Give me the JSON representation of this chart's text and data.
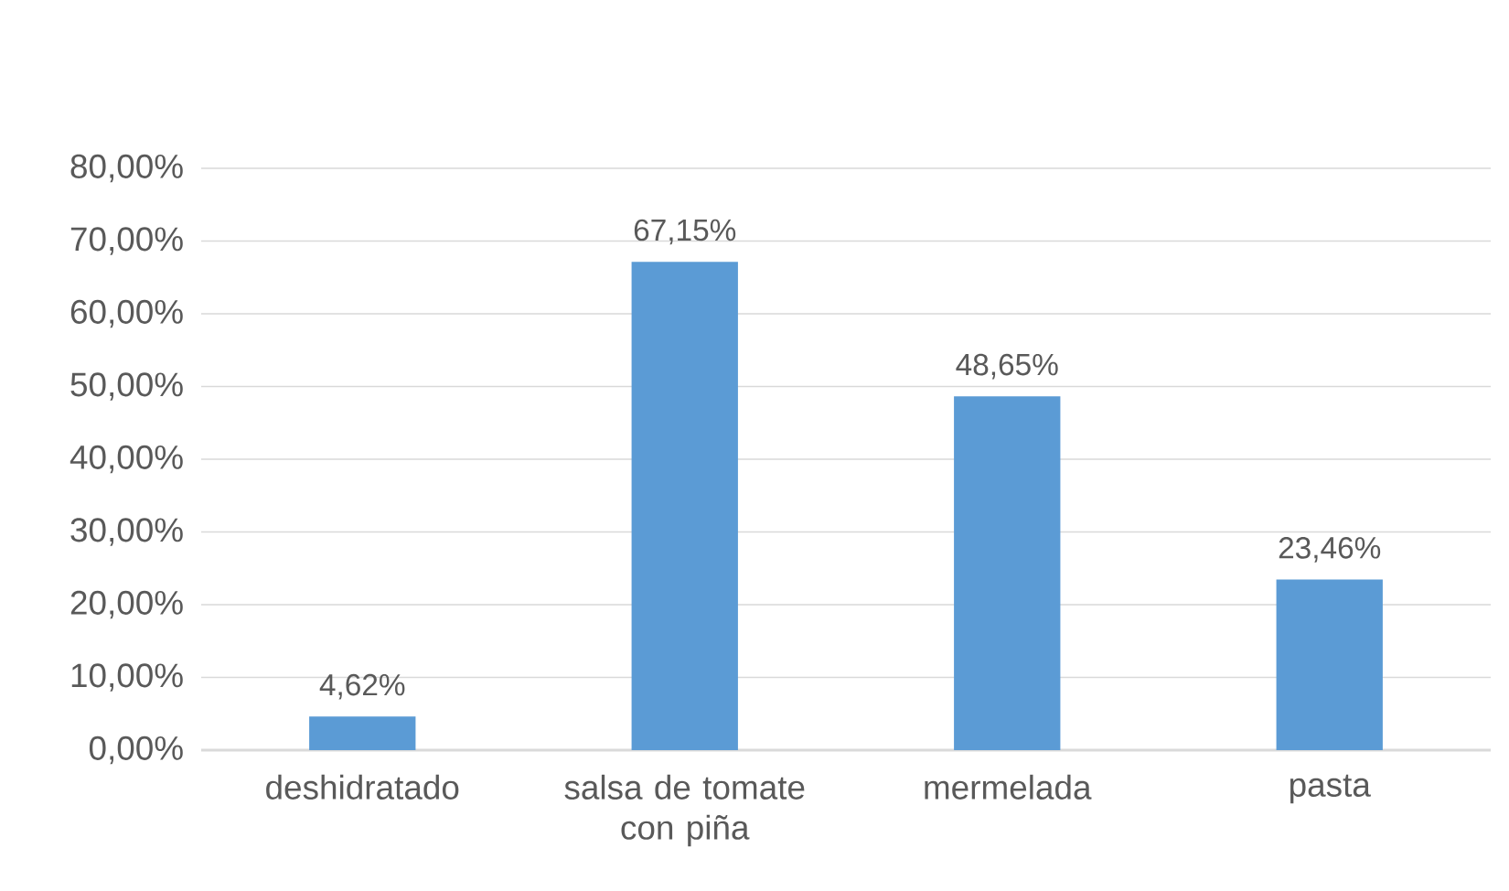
{
  "chart_data": {
    "type": "bar",
    "categories": [
      "deshidratado",
      "salsa de tomate con piña",
      "mermelada",
      "pasta"
    ],
    "values": [
      4.62,
      67.15,
      48.65,
      23.46
    ],
    "value_labels": [
      "4,62%",
      "67,15%",
      "48,65%",
      "23,46%"
    ],
    "color": "#5b9bd5",
    "ylim": [
      0,
      80
    ],
    "yticks": [
      {
        "value": 0,
        "label": "0,00%"
      },
      {
        "value": 10,
        "label": "10,00%"
      },
      {
        "value": 20,
        "label": "20,00%"
      },
      {
        "value": 30,
        "label": "30,00%"
      },
      {
        "value": 40,
        "label": "40,00%"
      },
      {
        "value": 50,
        "label": "50,00%"
      },
      {
        "value": 60,
        "label": "60,00%"
      },
      {
        "value": 70,
        "label": "70,00%"
      },
      {
        "value": 80,
        "label": "80,00%"
      }
    ],
    "grid": "y"
  }
}
